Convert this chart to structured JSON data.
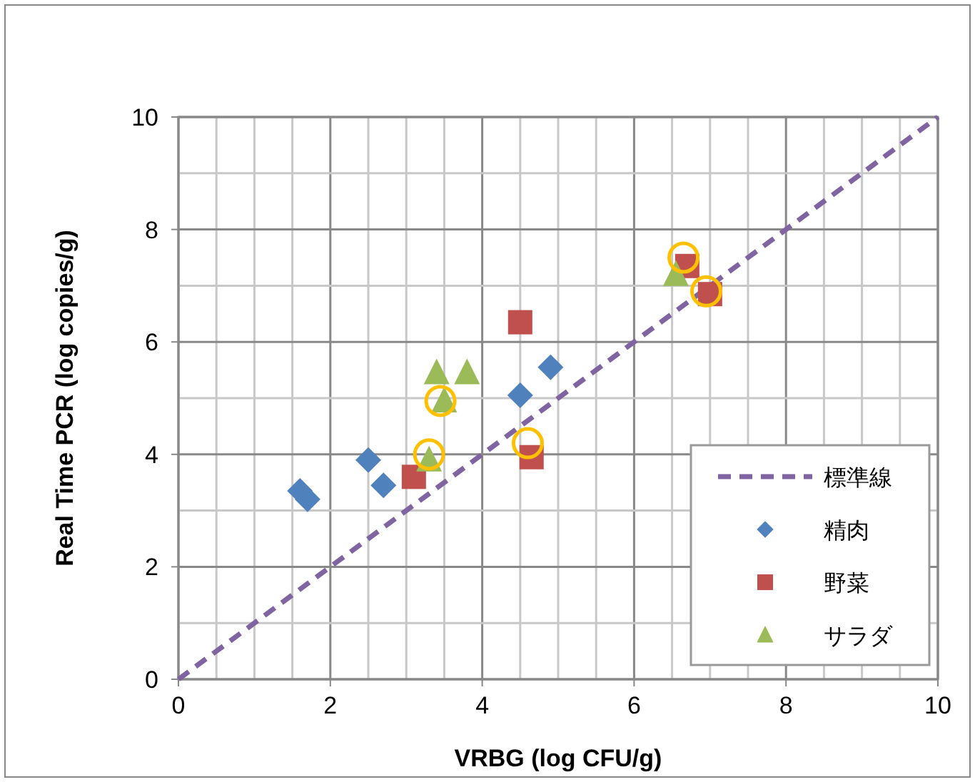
{
  "chart_data": {
    "type": "scatter",
    "xlabel": "VRBG (log CFU/g)",
    "ylabel": "Real Time PCR (log copies/g)",
    "xlim": [
      0,
      10
    ],
    "ylim": [
      0,
      10
    ],
    "xticks": [
      0,
      2,
      4,
      6,
      8,
      10
    ],
    "yticks": [
      0,
      2,
      4,
      6,
      8,
      10
    ],
    "grid": true,
    "legend": "bottom right",
    "series": [
      {
        "name": "標準線",
        "type": "line",
        "line_style": "dashed",
        "marker": "none",
        "color": "#8064a2",
        "x": [
          0,
          10
        ],
        "values": [
          0,
          10
        ]
      },
      {
        "name": "精肉",
        "marker": "diamond",
        "color": "#4f81bd",
        "x": [
          1.6,
          1.7,
          2.5,
          2.7,
          4.5,
          4.9
        ],
        "values": [
          3.35,
          3.2,
          3.9,
          3.45,
          5.05,
          5.55
        ]
      },
      {
        "name": "野菜",
        "marker": "square",
        "color": "#c0504d",
        "x": [
          3.1,
          4.5,
          4.65,
          6.7,
          7.0
        ],
        "values": [
          3.6,
          6.35,
          3.95,
          7.35,
          6.85
        ]
      },
      {
        "name": "サラダ",
        "marker": "triangle",
        "color": "#9bbb59",
        "x": [
          3.4,
          3.8,
          3.5,
          3.3,
          6.55
        ],
        "values": [
          5.45,
          5.45,
          4.95,
          3.9,
          7.2
        ]
      },
      {
        "marker": "circle",
        "color": "#ffc000",
        "x": [
          3.45,
          3.3,
          4.6,
          6.65,
          6.95
        ],
        "values": [
          4.95,
          4.0,
          4.2,
          7.5,
          6.9
        ]
      }
    ]
  }
}
